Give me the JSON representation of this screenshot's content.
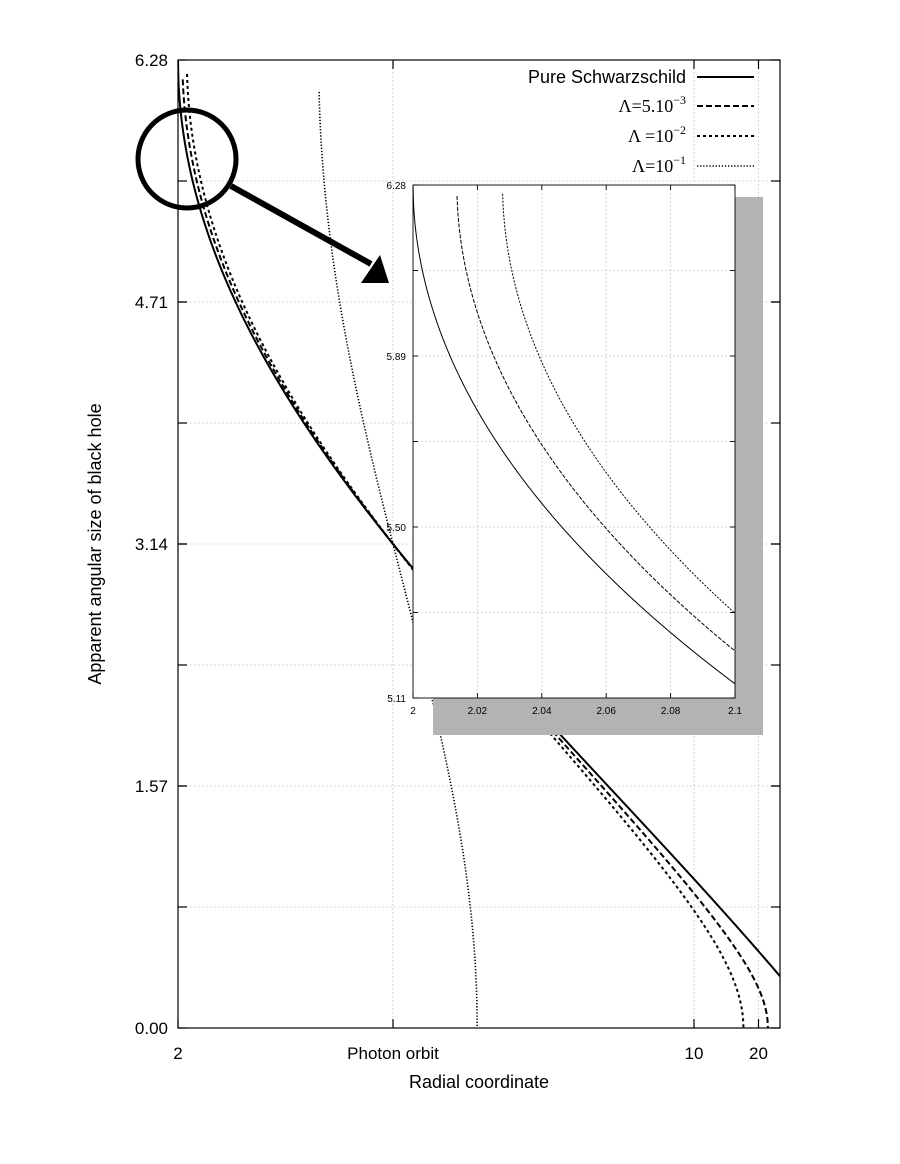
{
  "chart_data": {
    "type": "line",
    "title": "",
    "xlabel": "Radial coordinate",
    "ylabel": "Apparent angular size of black hole",
    "x_scale": "reciprocal",
    "xlim": [
      2,
      30
    ],
    "ylim": [
      0,
      6.2832
    ],
    "x_ticks": [
      {
        "value": 2,
        "label": "2"
      },
      {
        "value": 3,
        "label": "Photon orbit"
      },
      {
        "value": 10,
        "label": "10"
      },
      {
        "value": 20,
        "label": "20"
      }
    ],
    "y_ticks": [
      {
        "value": 0,
        "label": "0.00"
      },
      {
        "value": 1.5708,
        "label": "1.57"
      },
      {
        "value": 3.1416,
        "label": "3.14"
      },
      {
        "value": 4.7124,
        "label": "4.71"
      },
      {
        "value": 6.2832,
        "label": "6.28"
      }
    ],
    "grid": true,
    "legend_position": "top-right",
    "series": [
      {
        "name": "Pure Schwarzschild",
        "lambda": 0,
        "dash": "solid"
      },
      {
        "name": "Λ=5.10",
        "name_sup": "−3",
        "lambda": 0.005,
        "dash": "dashed"
      },
      {
        "name": "Λ =10",
        "name_sup": "−2",
        "lambda": 0.01,
        "dash": "short-dashed"
      },
      {
        "name": "Λ=10",
        "name_sup": "−1",
        "lambda": 0.1,
        "dash": "dotted"
      }
    ],
    "inset": {
      "xlim": [
        2,
        2.1
      ],
      "ylim": [
        5.11,
        6.28
      ],
      "x_ticks": [
        "2",
        "2.02",
        "2.04",
        "2.06",
        "2.08",
        "2.1"
      ],
      "y_ticks": [
        "5.11",
        "5.50",
        "5.89",
        "6.28"
      ],
      "shadow": true
    },
    "annotations": [
      {
        "type": "zoom-circle",
        "x": 2.05,
        "y": 5.7
      },
      {
        "type": "arrow",
        "from": "zoom-circle",
        "to": "inset"
      }
    ]
  }
}
